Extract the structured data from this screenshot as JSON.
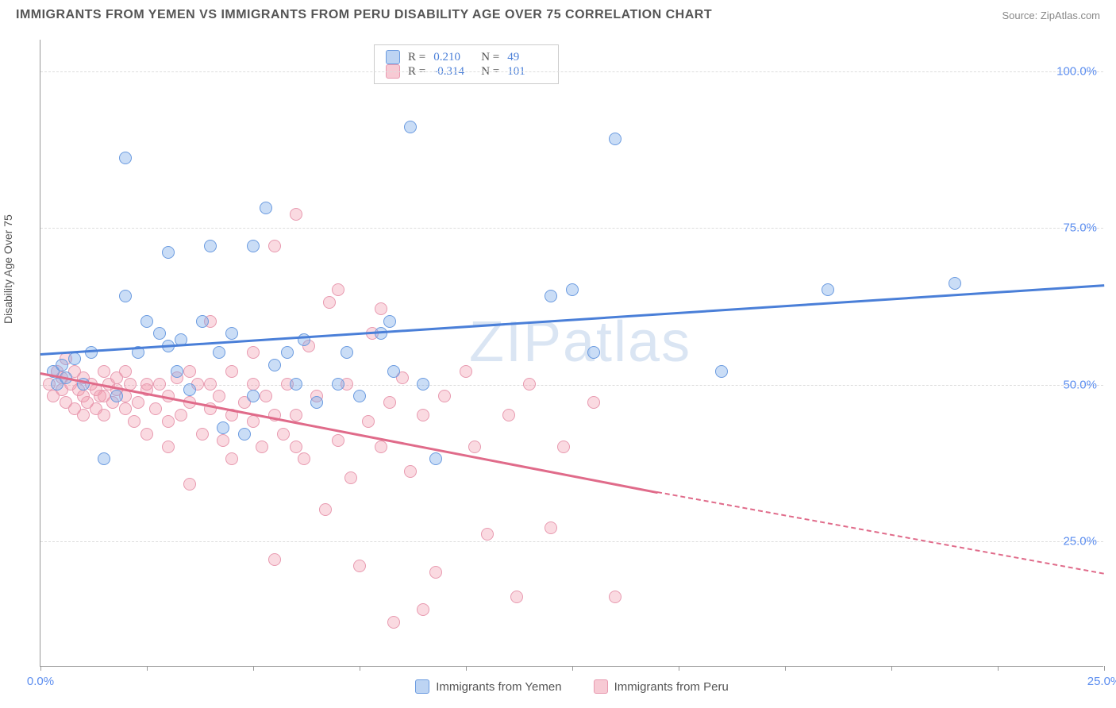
{
  "title": "IMMIGRANTS FROM YEMEN VS IMMIGRANTS FROM PERU DISABILITY AGE OVER 75 CORRELATION CHART",
  "source": "Source: ZipAtlas.com",
  "ylabel": "Disability Age Over 75",
  "watermark": "ZIPatlas",
  "chart": {
    "xlim": [
      0,
      25
    ],
    "ylim": [
      5,
      105
    ],
    "grid_color": "#dddddd",
    "yticks": [
      25,
      50,
      75,
      100
    ],
    "ytick_labels": [
      "25.0%",
      "50.0%",
      "75.0%",
      "100.0%"
    ],
    "xticks": [
      0,
      2.5,
      5,
      7.5,
      10,
      12.5,
      15,
      17.5,
      20,
      22.5,
      25
    ],
    "xtick_labels": {
      "0": "0.0%",
      "25": "25.0%"
    },
    "series": {
      "yemen": {
        "label": "Immigrants from Yemen",
        "color_fill": "rgba(123,169,232,0.4)",
        "color_stroke": "#6b9be0",
        "R": "0.210",
        "N": "49",
        "trend": {
          "x1": 0,
          "y1": 55,
          "x2": 25,
          "y2": 66,
          "color": "#4a7fd8"
        },
        "points": [
          [
            0.3,
            52
          ],
          [
            0.4,
            50
          ],
          [
            0.5,
            53
          ],
          [
            0.6,
            51
          ],
          [
            0.8,
            54
          ],
          [
            1.0,
            50
          ],
          [
            1.2,
            55
          ],
          [
            1.5,
            38
          ],
          [
            1.8,
            48
          ],
          [
            2.0,
            64
          ],
          [
            2.0,
            86
          ],
          [
            2.3,
            55
          ],
          [
            2.5,
            60
          ],
          [
            2.8,
            58
          ],
          [
            3.0,
            56
          ],
          [
            3.0,
            71
          ],
          [
            3.2,
            52
          ],
          [
            3.3,
            57
          ],
          [
            3.5,
            49
          ],
          [
            3.8,
            60
          ],
          [
            4.0,
            72
          ],
          [
            4.2,
            55
          ],
          [
            4.5,
            58
          ],
          [
            4.8,
            42
          ],
          [
            5.0,
            48
          ],
          [
            5.0,
            72
          ],
          [
            5.3,
            78
          ],
          [
            5.5,
            53
          ],
          [
            5.8,
            55
          ],
          [
            6.0,
            50
          ],
          [
            6.2,
            57
          ],
          [
            6.5,
            47
          ],
          [
            7.0,
            50
          ],
          [
            7.2,
            55
          ],
          [
            7.5,
            48
          ],
          [
            8.0,
            58
          ],
          [
            8.3,
            52
          ],
          [
            8.7,
            91
          ],
          [
            9.0,
            50
          ],
          [
            9.3,
            38
          ],
          [
            12.0,
            64
          ],
          [
            12.5,
            65
          ],
          [
            13.0,
            55
          ],
          [
            13.5,
            89
          ],
          [
            16.0,
            52
          ],
          [
            18.5,
            65
          ],
          [
            21.5,
            66
          ],
          [
            8.2,
            60
          ],
          [
            4.3,
            43
          ]
        ]
      },
      "peru": {
        "label": "Immigrants from Peru",
        "color_fill": "rgba(240,150,170,0.35)",
        "color_stroke": "#e89ab0",
        "R": "-0.314",
        "N": "101",
        "trend": {
          "x1": 0,
          "y1": 52,
          "x2": 14.5,
          "y2": 33,
          "dash_x2": 25,
          "dash_y2": 20,
          "color": "#e06b8a"
        },
        "points": [
          [
            0.2,
            50
          ],
          [
            0.3,
            48
          ],
          [
            0.4,
            52
          ],
          [
            0.5,
            49
          ],
          [
            0.5,
            51
          ],
          [
            0.6,
            47
          ],
          [
            0.7,
            50
          ],
          [
            0.8,
            46
          ],
          [
            0.8,
            52
          ],
          [
            0.9,
            49
          ],
          [
            1.0,
            48
          ],
          [
            1.0,
            51
          ],
          [
            1.1,
            47
          ],
          [
            1.2,
            50
          ],
          [
            1.3,
            46
          ],
          [
            1.3,
            49
          ],
          [
            1.4,
            48
          ],
          [
            1.5,
            52
          ],
          [
            1.5,
            45
          ],
          [
            1.6,
            50
          ],
          [
            1.7,
            47
          ],
          [
            1.8,
            49
          ],
          [
            1.8,
            51
          ],
          [
            2.0,
            46
          ],
          [
            2.0,
            48
          ],
          [
            2.1,
            50
          ],
          [
            2.2,
            44
          ],
          [
            2.3,
            47
          ],
          [
            2.5,
            49
          ],
          [
            2.5,
            42
          ],
          [
            2.7,
            46
          ],
          [
            2.8,
            50
          ],
          [
            3.0,
            44
          ],
          [
            3.0,
            48
          ],
          [
            3.2,
            51
          ],
          [
            3.3,
            45
          ],
          [
            3.5,
            34
          ],
          [
            3.5,
            47
          ],
          [
            3.7,
            50
          ],
          [
            3.8,
            42
          ],
          [
            4.0,
            46
          ],
          [
            4.0,
            60
          ],
          [
            4.2,
            48
          ],
          [
            4.3,
            41
          ],
          [
            4.5,
            52
          ],
          [
            4.5,
            38
          ],
          [
            4.8,
            47
          ],
          [
            5.0,
            44
          ],
          [
            5.0,
            55
          ],
          [
            5.2,
            40
          ],
          [
            5.3,
            48
          ],
          [
            5.5,
            72
          ],
          [
            5.5,
            22
          ],
          [
            5.7,
            42
          ],
          [
            5.8,
            50
          ],
          [
            6.0,
            45
          ],
          [
            6.0,
            77
          ],
          [
            6.2,
            38
          ],
          [
            6.3,
            56
          ],
          [
            6.5,
            48
          ],
          [
            6.7,
            30
          ],
          [
            6.8,
            63
          ],
          [
            7.0,
            41
          ],
          [
            7.0,
            65
          ],
          [
            7.2,
            50
          ],
          [
            7.3,
            35
          ],
          [
            7.5,
            21
          ],
          [
            7.7,
            44
          ],
          [
            7.8,
            58
          ],
          [
            8.0,
            62
          ],
          [
            8.0,
            40
          ],
          [
            8.2,
            47
          ],
          [
            8.3,
            12
          ],
          [
            8.5,
            51
          ],
          [
            8.7,
            36
          ],
          [
            9.0,
            45
          ],
          [
            9.0,
            14
          ],
          [
            9.3,
            20
          ],
          [
            9.5,
            48
          ],
          [
            10.0,
            52
          ],
          [
            10.2,
            40
          ],
          [
            10.5,
            26
          ],
          [
            11.0,
            45
          ],
          [
            11.2,
            16
          ],
          [
            11.5,
            50
          ],
          [
            12.0,
            27
          ],
          [
            12.3,
            40
          ],
          [
            13.0,
            47
          ],
          [
            13.5,
            16
          ],
          [
            0.6,
            54
          ],
          [
            1.0,
            45
          ],
          [
            1.5,
            48
          ],
          [
            2.0,
            52
          ],
          [
            2.5,
            50
          ],
          [
            3.0,
            40
          ],
          [
            3.5,
            52
          ],
          [
            4.0,
            50
          ],
          [
            4.5,
            45
          ],
          [
            5.0,
            50
          ],
          [
            5.5,
            45
          ],
          [
            6.0,
            40
          ]
        ]
      }
    }
  }
}
